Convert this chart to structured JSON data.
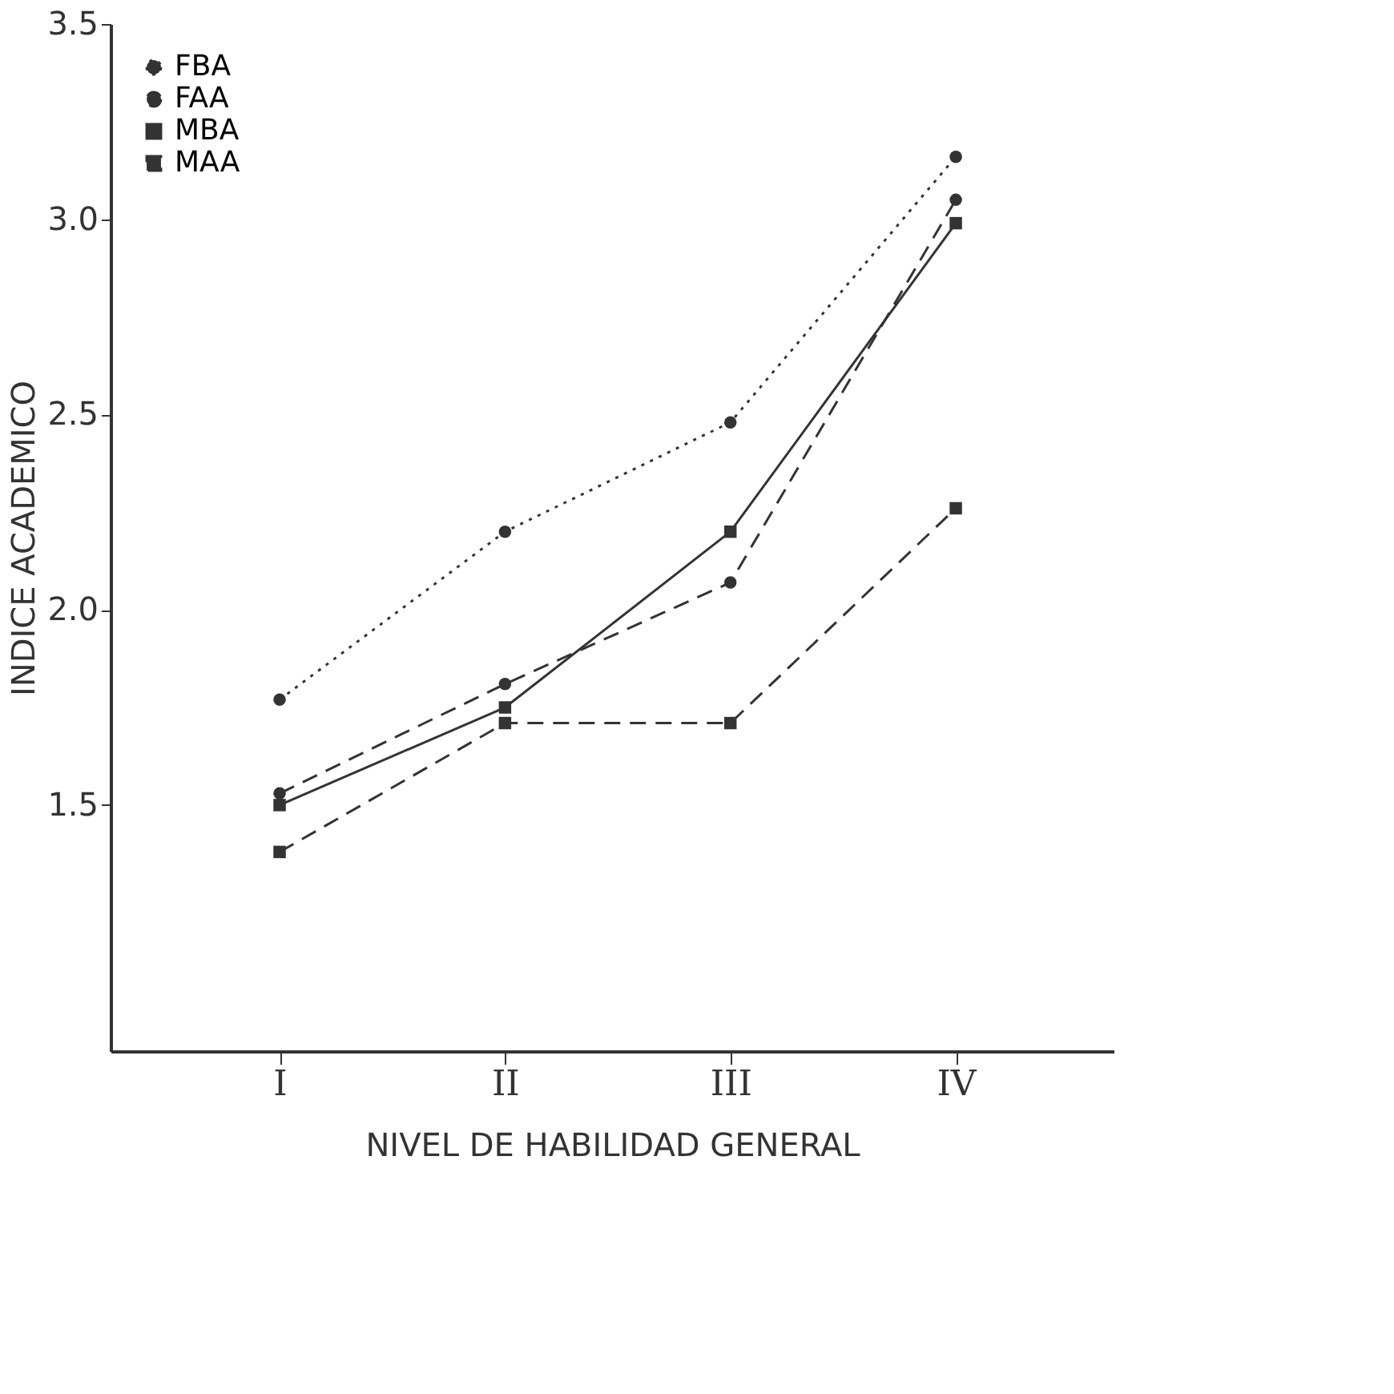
{
  "chart_data": {
    "type": "line",
    "xlabel": "NIVEL DE HABILIDAD GENERAL",
    "ylabel": "INDICE ACADEMICO",
    "categories": [
      "I",
      "II",
      "III",
      "IV"
    ],
    "series": [
      {
        "name": "FBA",
        "color": "#333333",
        "line_style": "dotted",
        "marker": "circle",
        "values": [
          1.77,
          2.2,
          2.48,
          3.16
        ]
      },
      {
        "name": "FAA",
        "color": "#333333",
        "line_style": "dashed",
        "marker": "circle",
        "values": [
          1.53,
          1.81,
          2.07,
          3.05
        ]
      },
      {
        "name": "MBA",
        "color": "#333333",
        "line_style": "solid",
        "marker": "square",
        "values": [
          1.5,
          1.75,
          2.2,
          2.99
        ]
      },
      {
        "name": "MAA",
        "color": "#333333",
        "line_style": "dashed",
        "marker": "square",
        "values": [
          1.38,
          1.71,
          1.71,
          2.26
        ]
      }
    ],
    "ylim": [
      0.87,
      3.5
    ],
    "yticks": [
      1.5,
      {
        "value": 2,
        "label": "2.0"
      },
      2.5,
      {
        "value": 3,
        "label": "3.0"
      },
      3.5
    ],
    "grid": false,
    "legend": "top left"
  }
}
